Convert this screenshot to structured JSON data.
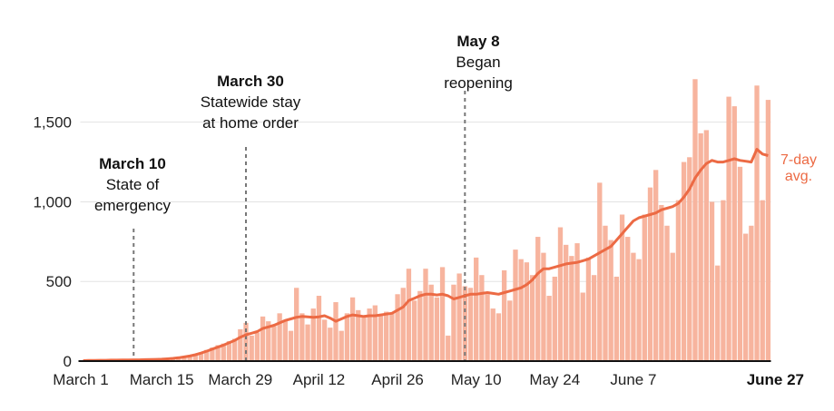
{
  "chart_data": {
    "type": "bar",
    "colors": {
      "bar": "#f7b49e",
      "avg_line": "#ec6a44",
      "grid": "#e3e3e3",
      "axis": "#111111",
      "annotation_line": "#777777"
    },
    "grid": true,
    "ylim": [
      0,
      1800
    ],
    "y_ticks": [
      {
        "value": 0,
        "label": "0"
      },
      {
        "value": 500,
        "label": "500"
      },
      {
        "value": 1000,
        "label": "1,000"
      },
      {
        "value": 1500,
        "label": "1,500"
      }
    ],
    "x_ticks": [
      {
        "day": 0,
        "label": "March 1",
        "bold": false
      },
      {
        "day": 14,
        "label": "March 15",
        "bold": false
      },
      {
        "day": 28,
        "label": "March 29",
        "bold": false
      },
      {
        "day": 42,
        "label": "April 12",
        "bold": false
      },
      {
        "day": 56,
        "label": "April 26",
        "bold": false
      },
      {
        "day": 70,
        "label": "May 10",
        "bold": false
      },
      {
        "day": 84,
        "label": "May 24",
        "bold": false
      },
      {
        "day": 98,
        "label": "June 7",
        "bold": false
      },
      {
        "day": 118,
        "label": "June 27",
        "bold": true
      }
    ],
    "values": [
      5,
      6,
      4,
      5,
      7,
      6,
      5,
      8,
      9,
      7,
      6,
      8,
      10,
      9,
      12,
      15,
      18,
      22,
      28,
      35,
      45,
      55,
      70,
      85,
      100,
      110,
      125,
      140,
      200,
      240,
      160,
      180,
      280,
      250,
      220,
      300,
      260,
      190,
      460,
      300,
      230,
      330,
      410,
      260,
      210,
      370,
      190,
      300,
      400,
      320,
      280,
      330,
      350,
      290,
      310,
      300,
      420,
      460,
      580,
      380,
      440,
      580,
      480,
      400,
      590,
      160,
      480,
      550,
      470,
      460,
      650,
      540,
      420,
      330,
      300,
      570,
      380,
      700,
      640,
      620,
      540,
      780,
      680,
      410,
      530,
      840,
      730,
      660,
      740,
      430,
      650,
      540,
      1120,
      850,
      760,
      530,
      920,
      780,
      680,
      640,
      920,
      1090,
      1200,
      980,
      850,
      680,
      1010,
      1250,
      1280,
      1770,
      1430,
      1450,
      1000,
      600,
      1010,
      1660,
      1600,
      1220,
      800,
      850,
      1730,
      1010,
      1640
    ],
    "seven_day_avg": [
      3,
      4,
      4,
      5,
      5,
      6,
      6,
      7,
      7,
      8,
      8,
      9,
      10,
      11,
      12,
      14,
      17,
      21,
      26,
      32,
      40,
      50,
      62,
      75,
      88,
      100,
      115,
      130,
      150,
      165,
      175,
      185,
      205,
      215,
      225,
      240,
      255,
      265,
      275,
      280,
      278,
      275,
      278,
      285,
      270,
      250,
      265,
      280,
      290,
      285,
      280,
      285,
      285,
      290,
      295,
      300,
      320,
      340,
      380,
      395,
      410,
      420,
      420,
      415,
      420,
      410,
      390,
      400,
      410,
      420,
      420,
      425,
      430,
      425,
      420,
      430,
      440,
      450,
      460,
      480,
      510,
      550,
      580,
      580,
      590,
      600,
      610,
      615,
      620,
      630,
      640,
      660,
      680,
      700,
      720,
      760,
      800,
      840,
      880,
      900,
      910,
      920,
      930,
      950,
      960,
      970,
      990,
      1030,
      1080,
      1150,
      1200,
      1240,
      1260,
      1250,
      1250,
      1260,
      1270,
      1260,
      1255,
      1250,
      1330,
      1300,
      1290
    ]
  },
  "annotations": [
    {
      "day": 9,
      "title": "March 10",
      "lines": [
        "State of",
        "emergency"
      ]
    },
    {
      "day": 29,
      "title": "March 30",
      "lines": [
        "Statewide stay",
        "at home order"
      ]
    },
    {
      "day": 68,
      "title": "May 8",
      "lines": [
        "Began",
        "reopening"
      ]
    }
  ],
  "avg_label": [
    "7-day",
    "avg."
  ]
}
